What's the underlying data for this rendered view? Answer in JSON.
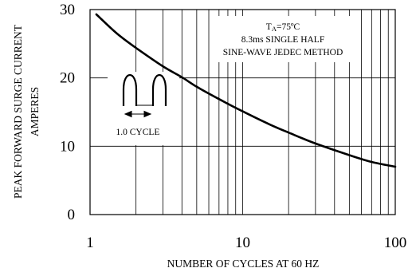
{
  "chart_data": {
    "type": "line",
    "title": "",
    "xlabel": "NUMBER OF CYCLES AT 60 HZ",
    "ylabel": [
      "PEAK FORWARD SURGE CURRENT",
      "AMPERES"
    ],
    "x_scale": "log",
    "xlim": [
      1,
      100
    ],
    "ylim": [
      0,
      30
    ],
    "x_ticks": [
      1,
      10,
      100
    ],
    "x_tick_labels": [
      "1",
      "10",
      "100"
    ],
    "y_ticks": [
      0,
      10,
      20,
      30
    ],
    "y_tick_labels": [
      "0",
      "10",
      "20",
      "30"
    ],
    "grid": true,
    "legend": "none",
    "series": [
      {
        "x": [
          1.1,
          1.5,
          2,
          3,
          4,
          5,
          7,
          10,
          15,
          20,
          30,
          50,
          70,
          100
        ],
        "values": [
          29.3,
          26.5,
          24.4,
          21.7,
          20.1,
          18.7,
          16.9,
          15.1,
          13.2,
          12.0,
          10.4,
          8.7,
          7.7,
          7.0
        ]
      }
    ],
    "annotations": {
      "conditions_line1": "TA=75ºC",
      "conditions_line1_main": "T",
      "conditions_line1_sub": "A",
      "conditions_line1_rest": "=75ºC",
      "conditions_line2": "8.3ms SINGLE HALF",
      "conditions_line3": "SINE-WAVE JEDEC METHOD",
      "cycle_label": "1.0 CYCLE"
    }
  }
}
